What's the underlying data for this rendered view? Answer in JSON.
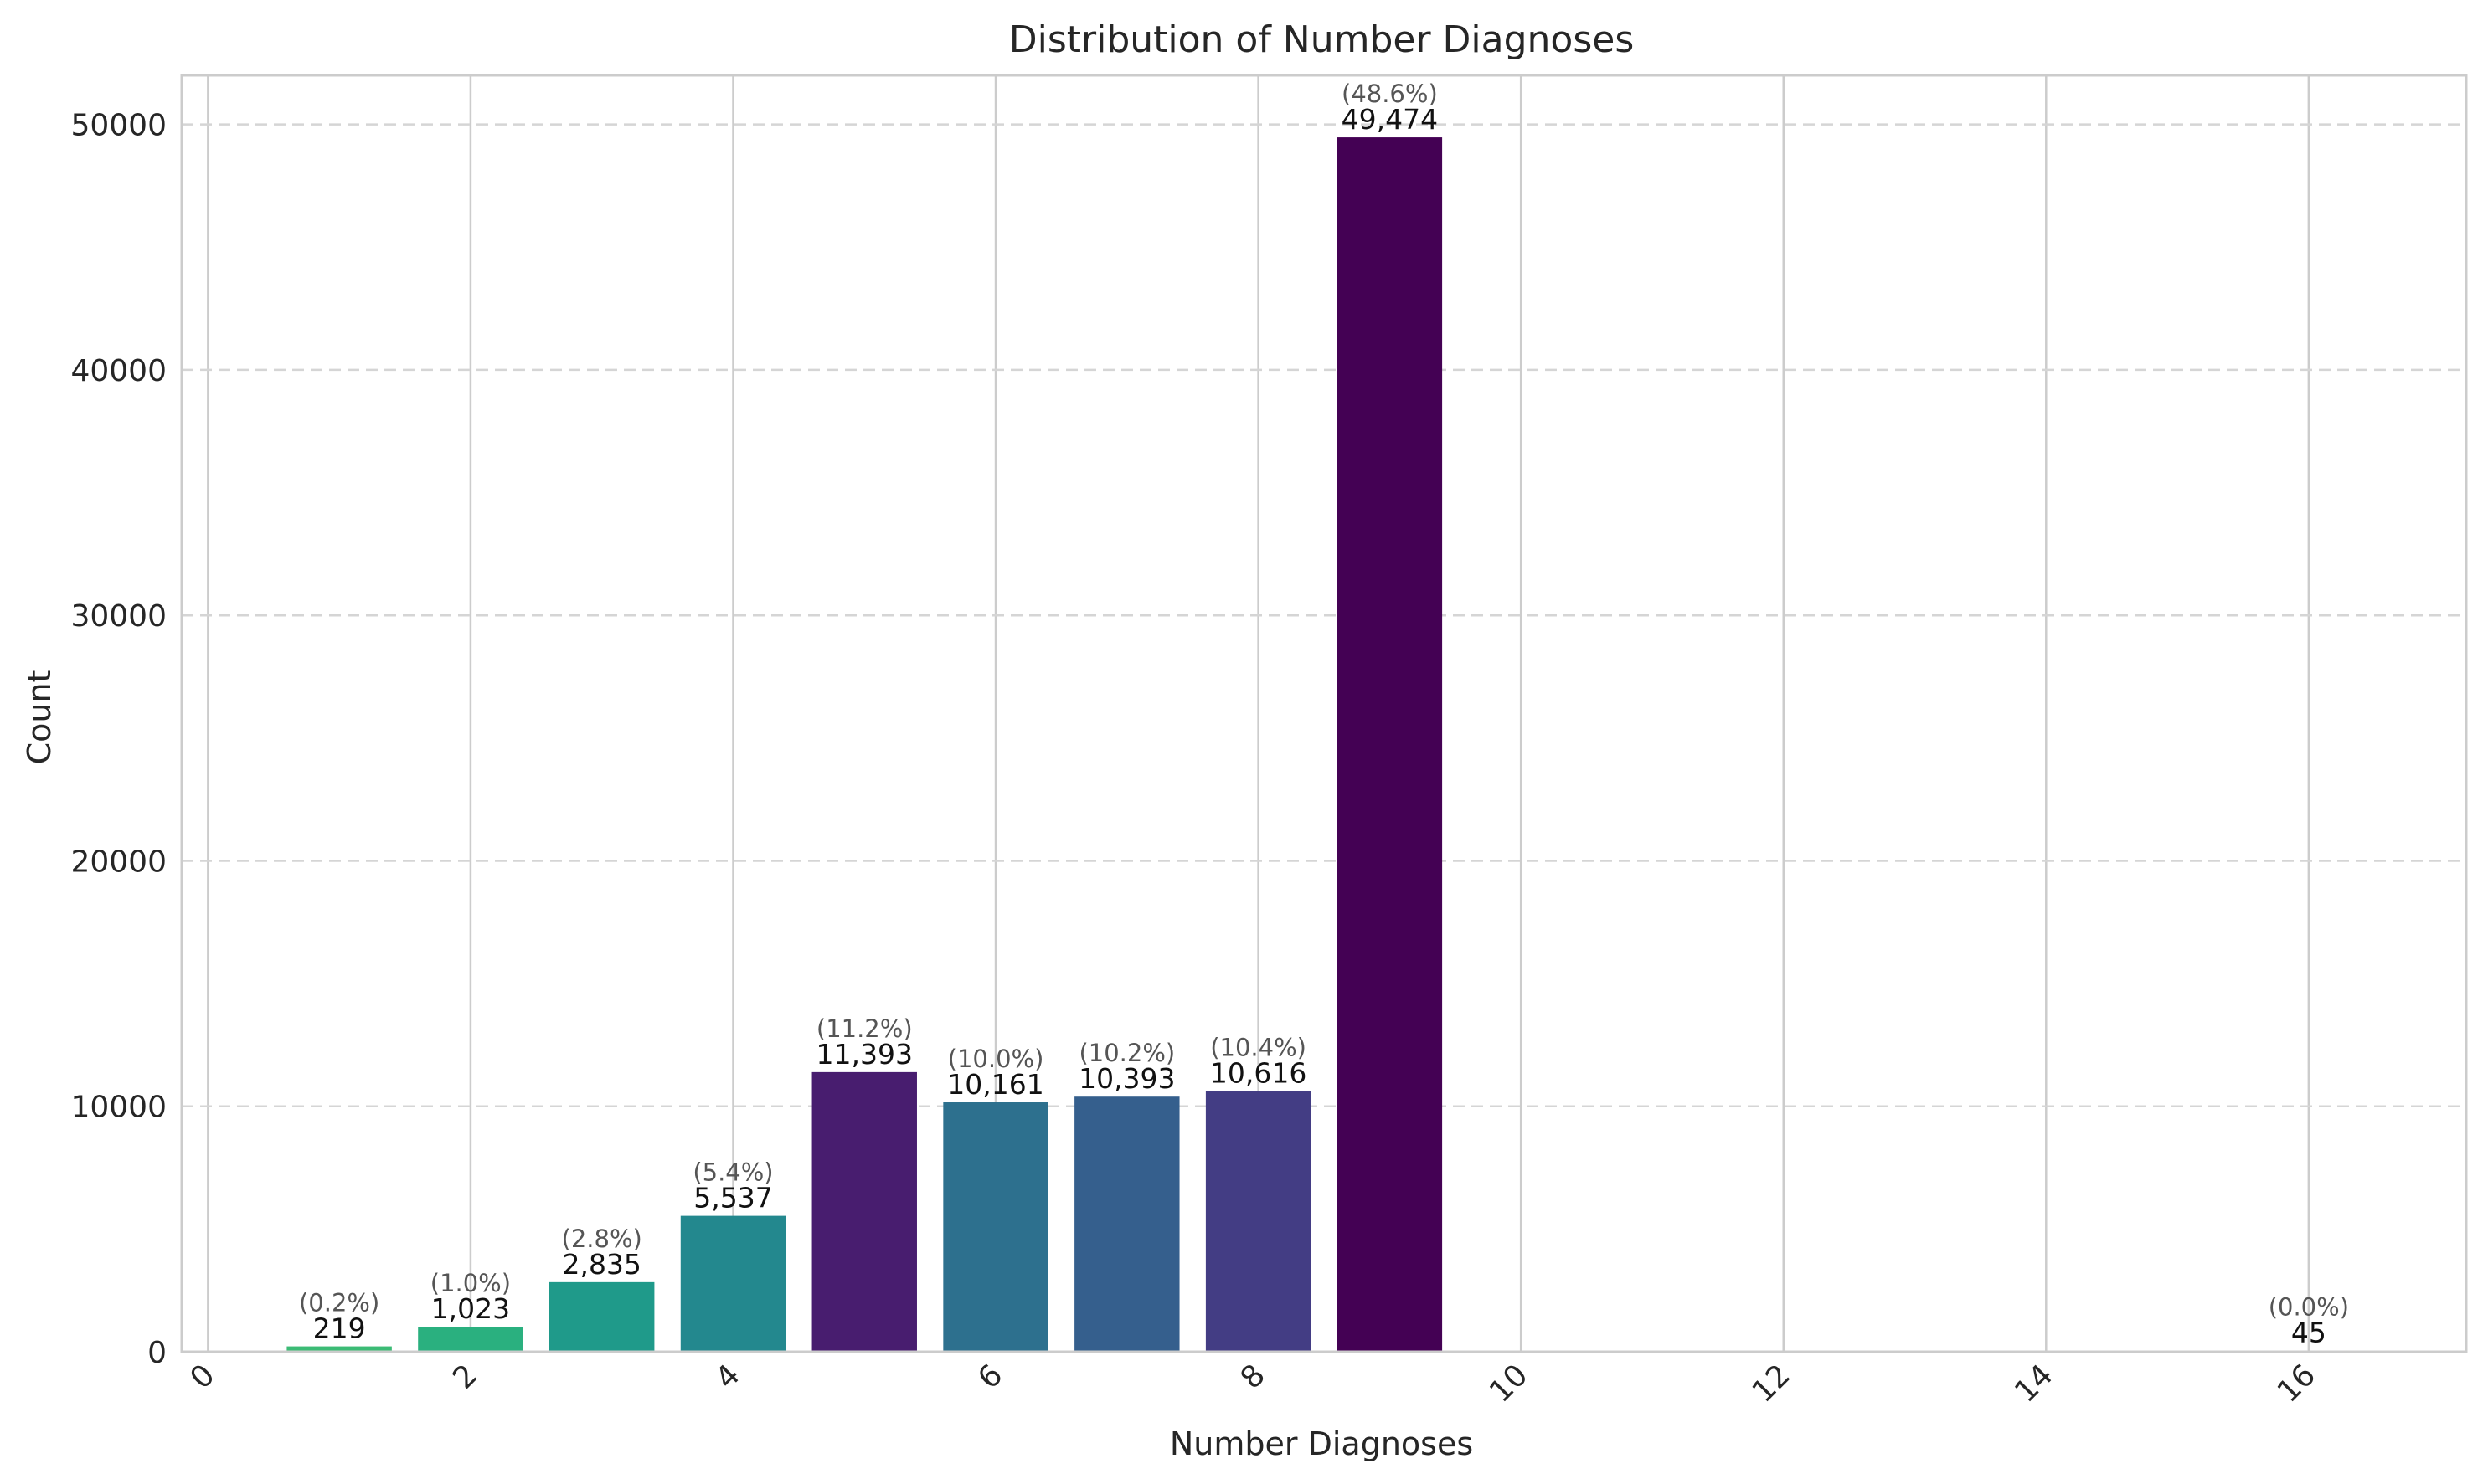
{
  "chart_data": {
    "type": "bar",
    "title": "Distribution of Number Diagnoses",
    "xlabel": "Number Diagnoses",
    "ylabel": "Count",
    "xlim": [
      -0.2,
      17.2
    ],
    "ylim": [
      0,
      52000
    ],
    "xticks": [
      0,
      2,
      4,
      6,
      8,
      10,
      12,
      14,
      16
    ],
    "yticks": [
      0,
      10000,
      20000,
      30000,
      40000,
      50000
    ],
    "grid": true,
    "legend": "none",
    "bar_width": 0.8,
    "bars": [
      {
        "x": 1,
        "value": 219,
        "label": "219",
        "pct": "(0.2%)",
        "color": "#3bbb75"
      },
      {
        "x": 2,
        "value": 1023,
        "label": "1,023",
        "pct": "(1.0%)",
        "color": "#2ab07f"
      },
      {
        "x": 3,
        "value": 2835,
        "label": "2,835",
        "pct": "(2.8%)",
        "color": "#1f9a8a"
      },
      {
        "x": 4,
        "value": 5537,
        "label": "5,537",
        "pct": "(5.4%)",
        "color": "#23888e"
      },
      {
        "x": 5,
        "value": 11393,
        "label": "11,393",
        "pct": "(11.2%)",
        "color": "#481d6f"
      },
      {
        "x": 6,
        "value": 10161,
        "label": "10,161",
        "pct": "(10.0%)",
        "color": "#2d708e"
      },
      {
        "x": 7,
        "value": 10393,
        "label": "10,393",
        "pct": "(10.2%)",
        "color": "#355f8d"
      },
      {
        "x": 8,
        "value": 10616,
        "label": "10,616",
        "pct": "(10.4%)",
        "color": "#433d84"
      },
      {
        "x": 9,
        "value": 49474,
        "label": "49,474",
        "pct": "(48.6%)",
        "color": "#440154"
      },
      {
        "x": 16,
        "value": 45,
        "label": "45",
        "pct": "(0.0%)",
        "color": "#fde725"
      }
    ]
  }
}
